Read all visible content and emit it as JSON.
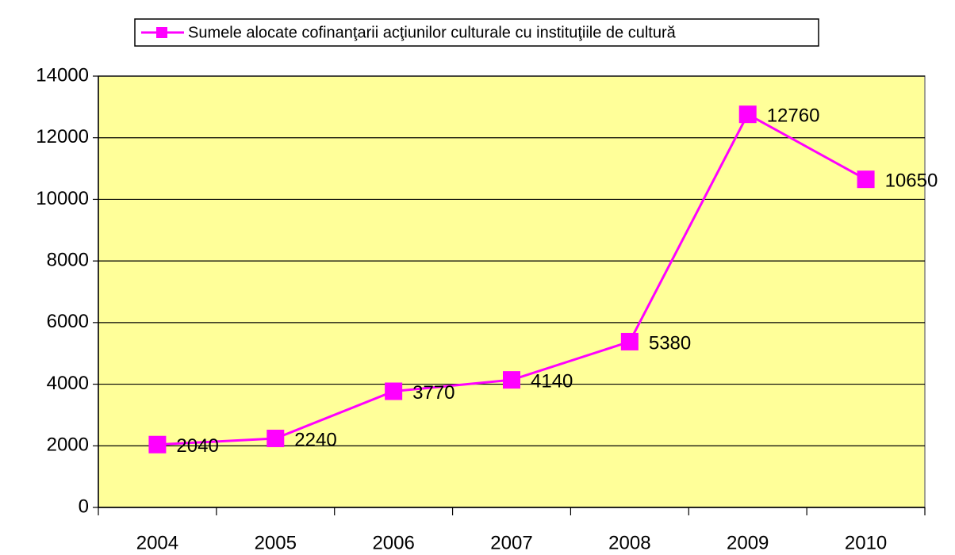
{
  "chart_data": {
    "type": "line",
    "categories": [
      "2004",
      "2005",
      "2006",
      "2007",
      "2008",
      "2009",
      "2010"
    ],
    "series": [
      {
        "name": "Sumele alocate cofinanţarii acţiunilor culturale cu instituţiile de cultură",
        "color": "#ff00ff",
        "values": [
          2040,
          2240,
          3770,
          4140,
          5380,
          12760,
          10650
        ]
      }
    ],
    "ylim": [
      0,
      14000
    ],
    "yticks": [
      0,
      2000,
      4000,
      6000,
      8000,
      10000,
      12000,
      14000
    ],
    "grid": true,
    "legend": "top",
    "plot_background": "#ffff99"
  }
}
